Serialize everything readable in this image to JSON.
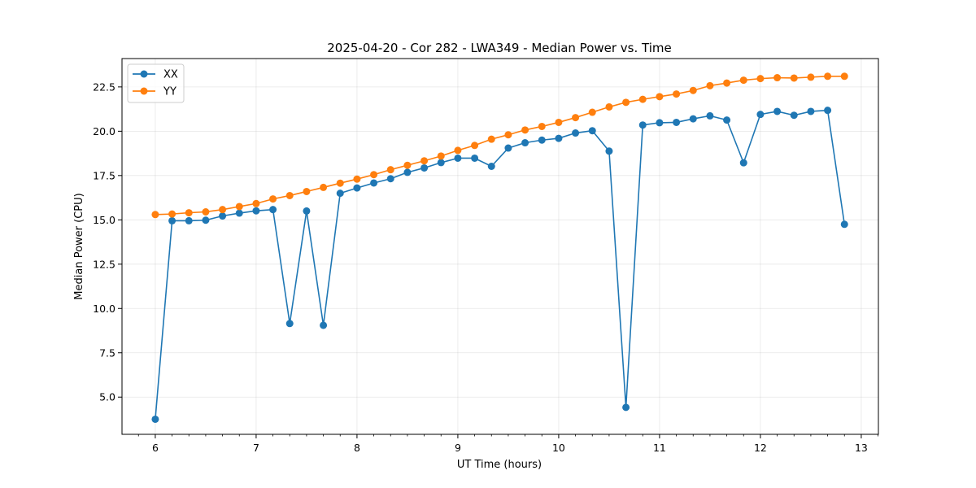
{
  "chart_data": {
    "type": "line",
    "title": "2025-04-20 - Cor 282 - LWA349 - Median Power vs. Time",
    "xlabel": "UT Time (hours)",
    "ylabel": "Median Power (CPU)",
    "xlim": [
      5.67,
      13.17
    ],
    "ylim": [
      2.9,
      24.1
    ],
    "xticks": [
      6,
      7,
      8,
      9,
      10,
      11,
      12,
      13
    ],
    "yticks": [
      5.0,
      7.5,
      10.0,
      12.5,
      15.0,
      17.5,
      20.0,
      22.5
    ],
    "xtick_labels": [
      "6",
      "7",
      "8",
      "9",
      "10",
      "11",
      "12",
      "13"
    ],
    "ytick_labels": [
      "5.0",
      "7.5",
      "10.0",
      "12.5",
      "15.0",
      "17.5",
      "20.0",
      "22.5"
    ],
    "grid": true,
    "legend_position": "top-left",
    "x": [
      6.0,
      6.1667,
      6.3333,
      6.5,
      6.6667,
      6.8333,
      7.0,
      7.1667,
      7.3333,
      7.5,
      7.6667,
      7.8333,
      8.0,
      8.1667,
      8.3333,
      8.5,
      8.6667,
      8.8333,
      9.0,
      9.1667,
      9.3333,
      9.5,
      9.6667,
      9.8333,
      10.0,
      10.1667,
      10.3333,
      10.5,
      10.6667,
      10.8333,
      11.0,
      11.1667,
      11.3333,
      11.5,
      11.6667,
      11.8333,
      12.0,
      12.1667,
      12.3333,
      12.5,
      12.6667,
      12.8333
    ],
    "series": [
      {
        "name": "XX",
        "color": "#1f77b4",
        "values": [
          3.75,
          14.95,
          14.95,
          14.98,
          15.22,
          15.38,
          15.51,
          15.58,
          9.15,
          15.5,
          9.05,
          16.5,
          16.8,
          17.08,
          17.32,
          17.68,
          17.93,
          18.23,
          18.48,
          18.48,
          18.02,
          19.05,
          19.35,
          19.5,
          19.6,
          19.9,
          20.03,
          18.88,
          4.42,
          20.35,
          20.48,
          20.5,
          20.7,
          20.87,
          20.63,
          18.22,
          20.95,
          21.12,
          20.9,
          21.12,
          21.18,
          14.75
        ]
      },
      {
        "name": "YY",
        "color": "#ff7f0e",
        "values": [
          15.3,
          15.33,
          15.4,
          15.45,
          15.58,
          15.75,
          15.92,
          16.18,
          16.37,
          16.6,
          16.83,
          17.07,
          17.3,
          17.55,
          17.83,
          18.08,
          18.33,
          18.6,
          18.92,
          19.2,
          19.55,
          19.8,
          20.07,
          20.27,
          20.5,
          20.77,
          21.07,
          21.37,
          21.63,
          21.8,
          21.95,
          22.1,
          22.3,
          22.57,
          22.72,
          22.88,
          22.97,
          23.02,
          23.0,
          23.05,
          23.1,
          23.1
        ]
      }
    ]
  }
}
